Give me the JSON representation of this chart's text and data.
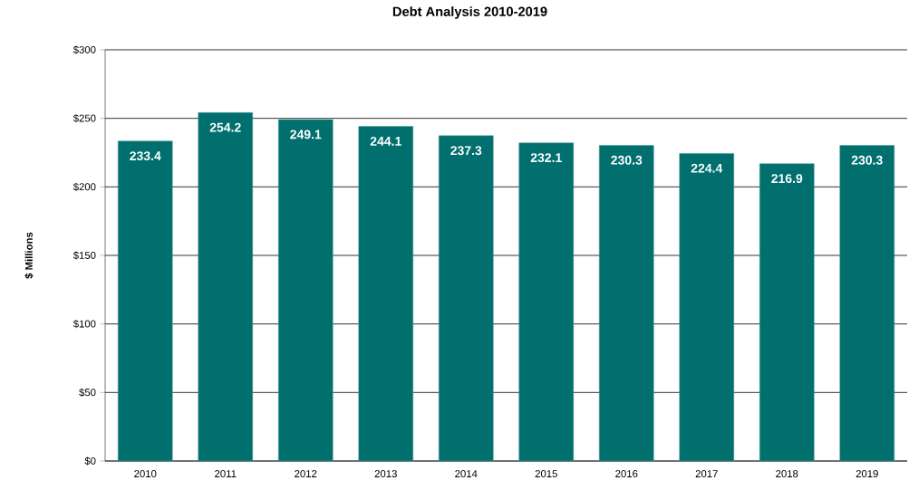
{
  "chart_data": {
    "type": "bar",
    "title": "Debt Analysis 2010-2019",
    "ylabel": "$ Millions",
    "categories": [
      "2010",
      "2011",
      "2012",
      "2013",
      "2014",
      "2015",
      "2016",
      "2017",
      "2018",
      "2019"
    ],
    "values": [
      233.4,
      254.2,
      249.1,
      244.1,
      237.3,
      232.1,
      230.3,
      224.4,
      216.9,
      230.3
    ],
    "color": "#006f6e",
    "ylim": [
      0,
      300
    ],
    "yticks": [
      {
        "value": 0,
        "label": "$0"
      },
      {
        "value": 50,
        "label": "$50"
      },
      {
        "value": 100,
        "label": "$100"
      },
      {
        "value": 150,
        "label": "$150"
      },
      {
        "value": 200,
        "label": "$200"
      },
      {
        "value": 250,
        "label": "$250"
      },
      {
        "value": 300,
        "label": "$300"
      }
    ],
    "grid": "y",
    "data_labels": true
  }
}
